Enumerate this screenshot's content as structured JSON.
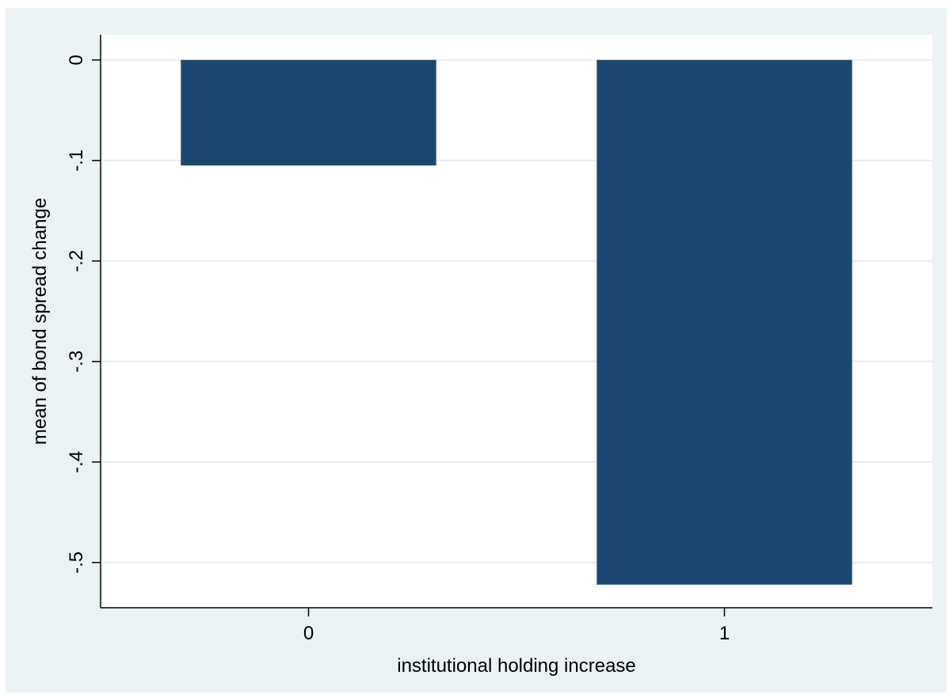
{
  "chart_data": {
    "type": "bar",
    "categories": [
      "0",
      "1"
    ],
    "values": [
      -0.105,
      -0.522
    ],
    "title": "",
    "xlabel": "institutional holding increase",
    "ylabel": "mean of bond spread change",
    "ylim": [
      -0.545,
      0.025
    ],
    "yticks": [
      {
        "value": 0,
        "label": "0"
      },
      {
        "value": -0.1,
        "label": "-.1"
      },
      {
        "value": -0.2,
        "label": "-.2"
      },
      {
        "value": -0.3,
        "label": "-.3"
      },
      {
        "value": -0.4,
        "label": "-.4"
      },
      {
        "value": -0.5,
        "label": "-.5"
      }
    ],
    "grid": true,
    "bar_color": "#1c4870",
    "background_color": "#eaf2f3",
    "plot_background_color": "#ffffff"
  }
}
